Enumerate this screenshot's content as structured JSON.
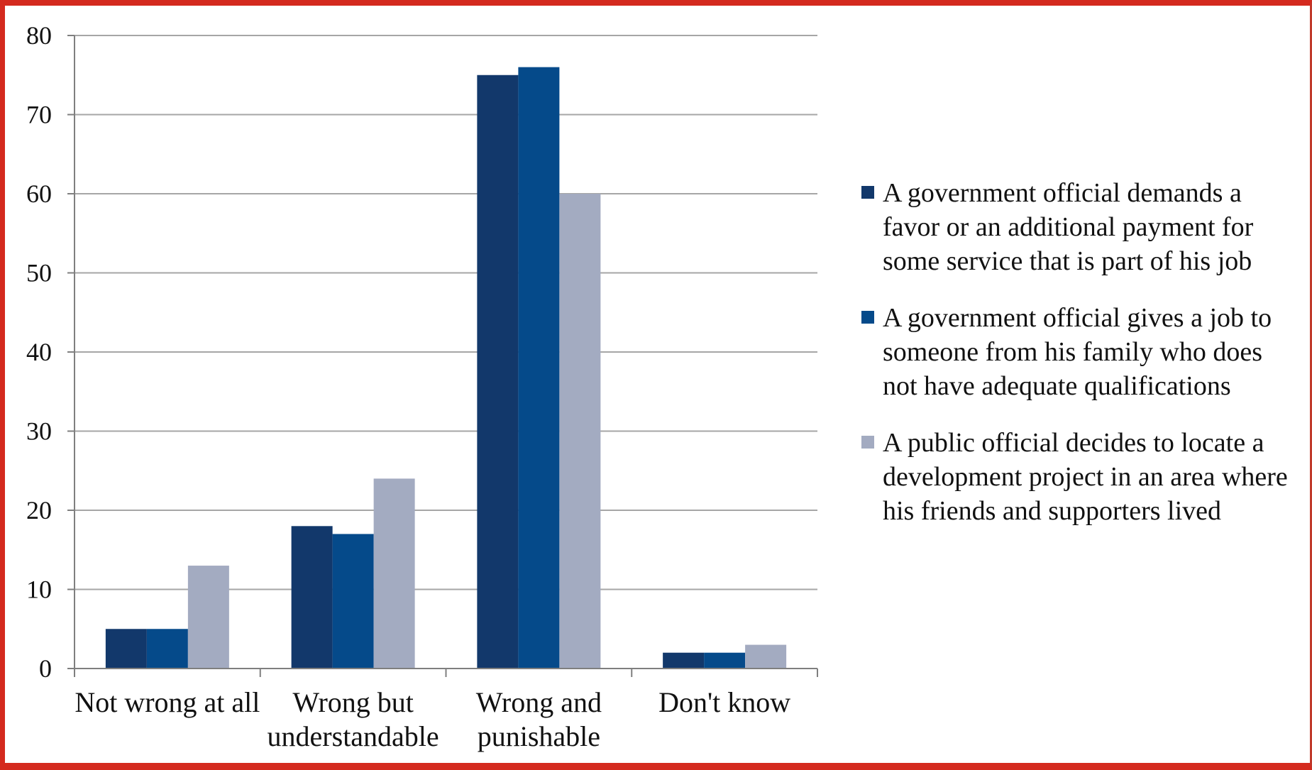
{
  "chart_data": {
    "type": "bar",
    "title": "",
    "xlabel": "",
    "ylabel": "",
    "categories": [
      "Not wrong at all",
      "Wrong but understandable",
      "Wrong and punishable",
      "Don't know"
    ],
    "category_lines": [
      [
        "Not wrong at all"
      ],
      [
        "Wrong but",
        "understandable"
      ],
      [
        "Wrong and",
        "punishable"
      ],
      [
        "Don't know"
      ]
    ],
    "series": [
      {
        "name": "A government official demands a favor or an additional payment for some service that is part of his job",
        "color": "#12386b",
        "values": [
          5,
          18,
          75,
          2
        ]
      },
      {
        "name": "A government official gives a job to someone from his family who does not have adequate qualifications",
        "color": "#054a8a",
        "values": [
          5,
          17,
          76,
          2
        ]
      },
      {
        "name": "A public official decides to locate a development project in an area where his friends and supporters lived",
        "color": "#a3abc1",
        "values": [
          13,
          24,
          60,
          3
        ]
      }
    ],
    "ylim": [
      0,
      80
    ],
    "yticks": [
      0,
      10,
      20,
      30,
      40,
      50,
      60,
      70,
      80
    ],
    "grid": true,
    "legend_position": "right"
  },
  "colors": {
    "frame": "#d42a1e",
    "gridline": "#a6a6a6",
    "axis": "#7f7f7f"
  }
}
